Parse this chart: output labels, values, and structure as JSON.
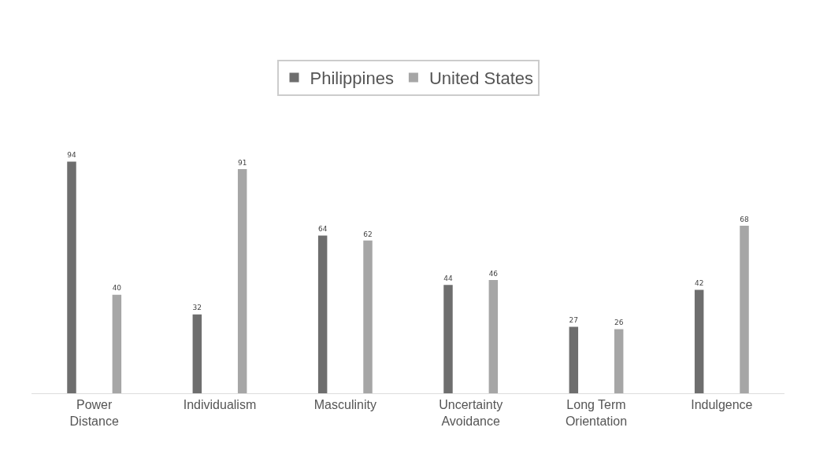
{
  "chart_data": {
    "type": "bar",
    "categories": [
      "Power Distance",
      "Individualism",
      "Masculinity",
      "Uncertainty Avoidance",
      "Long Term Orientation",
      "Indulgence"
    ],
    "series": [
      {
        "name": "Philippines",
        "color": "#6e6e6e",
        "values": [
          94,
          32,
          64,
          44,
          27,
          42
        ]
      },
      {
        "name": "United States",
        "color": "#a6a6a6",
        "values": [
          40,
          91,
          62,
          46,
          26,
          68
        ]
      }
    ],
    "data_labels": true,
    "legend": "top",
    "grid": false
  }
}
